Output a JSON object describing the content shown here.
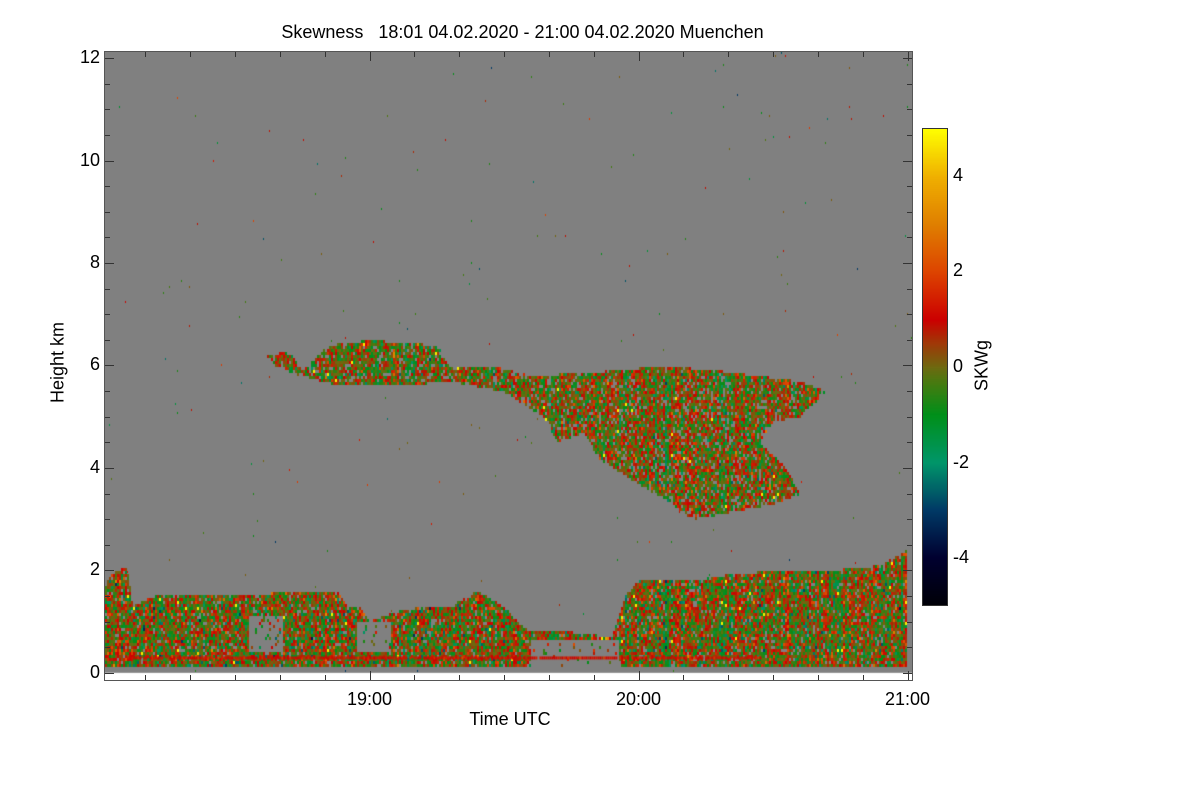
{
  "chart_data": {
    "type": "heatmap",
    "title": "Skewness   18:01 04.02.2020 - 21:00 04.02.2020 Muenchen",
    "xlabel": "Time UTC",
    "ylabel": "Height km",
    "xlim_hours": [
      18.0167,
      21.0167
    ],
    "ylim_km": [
      -0.14,
      12.12
    ],
    "x_ticks": [
      {
        "value": 19,
        "label": "19:00"
      },
      {
        "value": 20,
        "label": "20:00"
      },
      {
        "value": 21,
        "label": "21:00"
      }
    ],
    "x_minor_step_hours": 0.16667,
    "y_ticks": [
      {
        "value": 0,
        "label": "0"
      },
      {
        "value": 2,
        "label": "2"
      },
      {
        "value": 4,
        "label": "4"
      },
      {
        "value": 6,
        "label": "6"
      },
      {
        "value": 8,
        "label": "8"
      },
      {
        "value": 10,
        "label": "10"
      },
      {
        "value": 12,
        "label": "12"
      }
    ],
    "y_minor_step_km": 0.5,
    "colorbar": {
      "label": "SKWg",
      "range": [
        -5,
        5
      ],
      "ticks": [
        {
          "value": 4,
          "label": "4"
        },
        {
          "value": 2,
          "label": "2"
        },
        {
          "value": 0,
          "label": "0"
        },
        {
          "value": -2,
          "label": "-2"
        },
        {
          "value": -4,
          "label": "-4"
        }
      ],
      "stops": [
        [
          -5,
          "#000008"
        ],
        [
          -4,
          "#000030"
        ],
        [
          -3,
          "#003a66"
        ],
        [
          -2,
          "#00966a"
        ],
        [
          -1,
          "#00901a"
        ],
        [
          -0.3,
          "#4a7a10"
        ],
        [
          0,
          "#6e6a10"
        ],
        [
          0.5,
          "#a03a08"
        ],
        [
          1,
          "#cc0000"
        ],
        [
          2,
          "#dd4400"
        ],
        [
          3,
          "#e08000"
        ],
        [
          4,
          "#f0b000"
        ],
        [
          5,
          "#ffff00"
        ]
      ]
    },
    "no_data_color": "#808080",
    "regions": [
      {
        "name": "boundary-layer",
        "mean": 0,
        "sd": 1.0,
        "density": 0.92,
        "polygon": [
          [
            18.017,
            0.1
          ],
          [
            18.017,
            1.7
          ],
          [
            18.05,
            2.0
          ],
          [
            18.1,
            2.05
          ],
          [
            18.12,
            1.3
          ],
          [
            18.2,
            1.5
          ],
          [
            18.3,
            1.55
          ],
          [
            18.5,
            1.5
          ],
          [
            18.6,
            1.55
          ],
          [
            18.75,
            1.6
          ],
          [
            18.88,
            1.6
          ],
          [
            18.92,
            1.3
          ],
          [
            18.97,
            1.3
          ],
          [
            19.0,
            1.0
          ],
          [
            19.1,
            1.2
          ],
          [
            19.2,
            1.3
          ],
          [
            19.3,
            1.3
          ],
          [
            19.4,
            1.6
          ],
          [
            19.5,
            1.3
          ],
          [
            19.55,
            1.0
          ],
          [
            19.6,
            0.8
          ],
          [
            19.75,
            0.8
          ],
          [
            19.9,
            0.7
          ],
          [
            19.95,
            1.5
          ],
          [
            20.0,
            1.8
          ],
          [
            20.2,
            1.8
          ],
          [
            20.3,
            1.9
          ],
          [
            20.5,
            2.0
          ],
          [
            20.7,
            2.0
          ],
          [
            20.9,
            2.1
          ],
          [
            21.0,
            2.4
          ],
          [
            21.0,
            0.1
          ]
        ]
      },
      {
        "name": "upper-cloud",
        "mean": 0,
        "sd": 0.9,
        "density": 0.85,
        "polygon": [
          [
            18.62,
            6.2
          ],
          [
            18.7,
            6.3
          ],
          [
            18.75,
            5.9
          ],
          [
            18.85,
            6.4
          ],
          [
            19.0,
            6.5
          ],
          [
            19.25,
            6.4
          ],
          [
            19.3,
            6.0
          ],
          [
            19.45,
            6.0
          ],
          [
            19.6,
            5.8
          ],
          [
            19.9,
            5.9
          ],
          [
            20.1,
            6.0
          ],
          [
            20.3,
            5.9
          ],
          [
            20.45,
            5.8
          ],
          [
            20.6,
            5.7
          ],
          [
            20.7,
            5.5
          ],
          [
            20.6,
            5.0
          ],
          [
            20.5,
            4.9
          ],
          [
            20.45,
            4.5
          ],
          [
            20.55,
            4.0
          ],
          [
            20.6,
            3.5
          ],
          [
            20.5,
            3.3
          ],
          [
            20.4,
            3.2
          ],
          [
            20.2,
            3.0
          ],
          [
            20.1,
            3.4
          ],
          [
            20.0,
            3.7
          ],
          [
            19.85,
            4.2
          ],
          [
            19.8,
            4.7
          ],
          [
            19.7,
            4.5
          ],
          [
            19.65,
            5.0
          ],
          [
            19.5,
            5.5
          ],
          [
            19.3,
            5.7
          ],
          [
            19.1,
            5.6
          ],
          [
            18.9,
            5.6
          ],
          [
            18.75,
            5.8
          ],
          [
            18.65,
            6.0
          ]
        ]
      }
    ],
    "gaps": [
      [
        [
          18.55,
          0.4
        ],
        [
          18.55,
          1.1
        ],
        [
          18.68,
          1.1
        ],
        [
          18.68,
          0.4
        ]
      ],
      [
        [
          18.95,
          0.4
        ],
        [
          18.95,
          1.0
        ],
        [
          19.08,
          1.0
        ],
        [
          19.08,
          0.4
        ]
      ],
      [
        [
          19.6,
          0.05
        ],
        [
          19.6,
          0.65
        ],
        [
          19.93,
          0.65
        ],
        [
          19.93,
          0.05
        ]
      ]
    ],
    "line_features": [
      {
        "t0": 18.1,
        "t1": 20.45,
        "height_km": 0.3,
        "value": 1.2
      }
    ]
  }
}
